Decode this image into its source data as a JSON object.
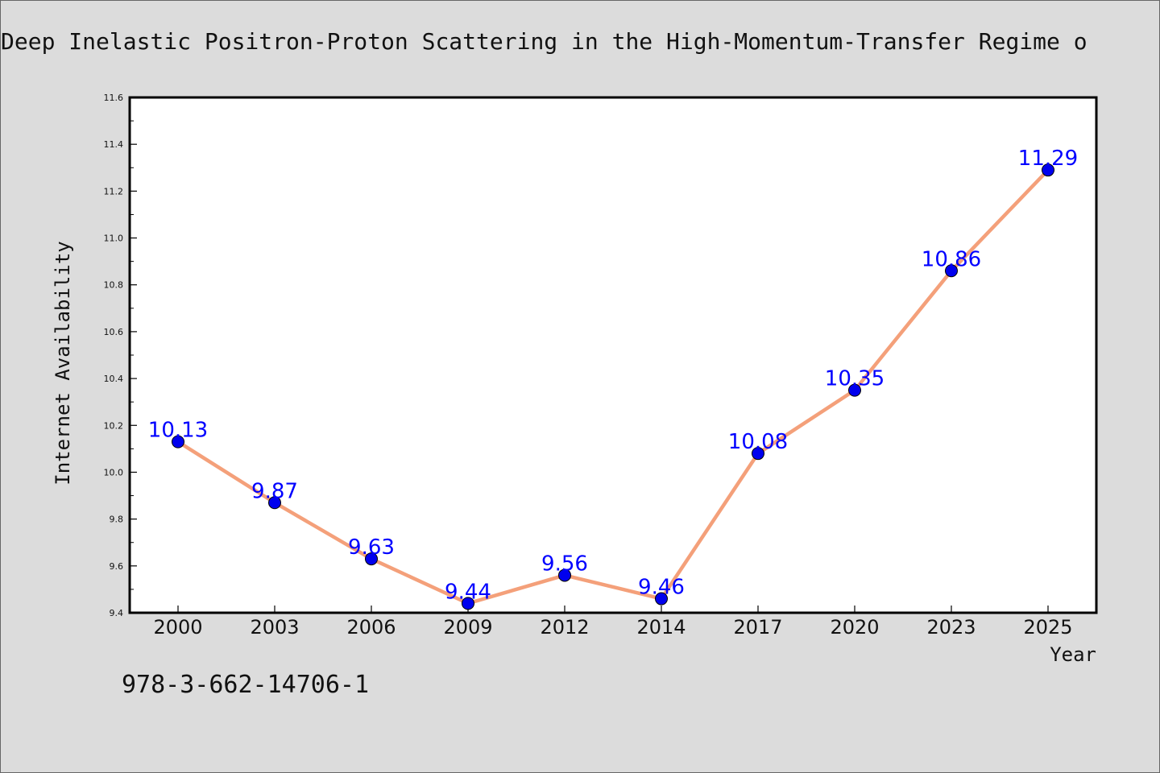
{
  "chart_data": {
    "type": "line",
    "title": "Deep Inelastic Positron-Proton Scattering in the High-Momentum-Transfer Regime o",
    "xlabel": "Year",
    "ylabel": "Internet Availability",
    "categories": [
      "2000",
      "2003",
      "2006",
      "2009",
      "2012",
      "2014",
      "2017",
      "2020",
      "2023",
      "2025"
    ],
    "values": [
      10.13,
      9.87,
      9.63,
      9.44,
      9.56,
      9.46,
      10.08,
      10.35,
      10.86,
      11.29
    ],
    "data_labels": [
      "10.13",
      "9.87",
      "9.63",
      "9.44",
      "9.56",
      "9.46",
      "10.08",
      "10.35",
      "10.86",
      "11.29"
    ],
    "ylim": [
      9.4,
      11.6
    ],
    "yticks": [
      "9.4",
      "9.6",
      "9.8",
      "10.0",
      "10.2",
      "10.4",
      "10.6",
      "10.8",
      "11.0",
      "11.2",
      "11.4",
      "11.6"
    ],
    "grid": false,
    "legend": "none",
    "colors": {
      "line": "#f4a07a",
      "marker": "#0000ee",
      "label": "#0000ff",
      "plot_bg": "#ffffff",
      "page_bg": "#dcdcdc"
    }
  },
  "footer": {
    "isbn": "978-3-662-14706-1"
  }
}
